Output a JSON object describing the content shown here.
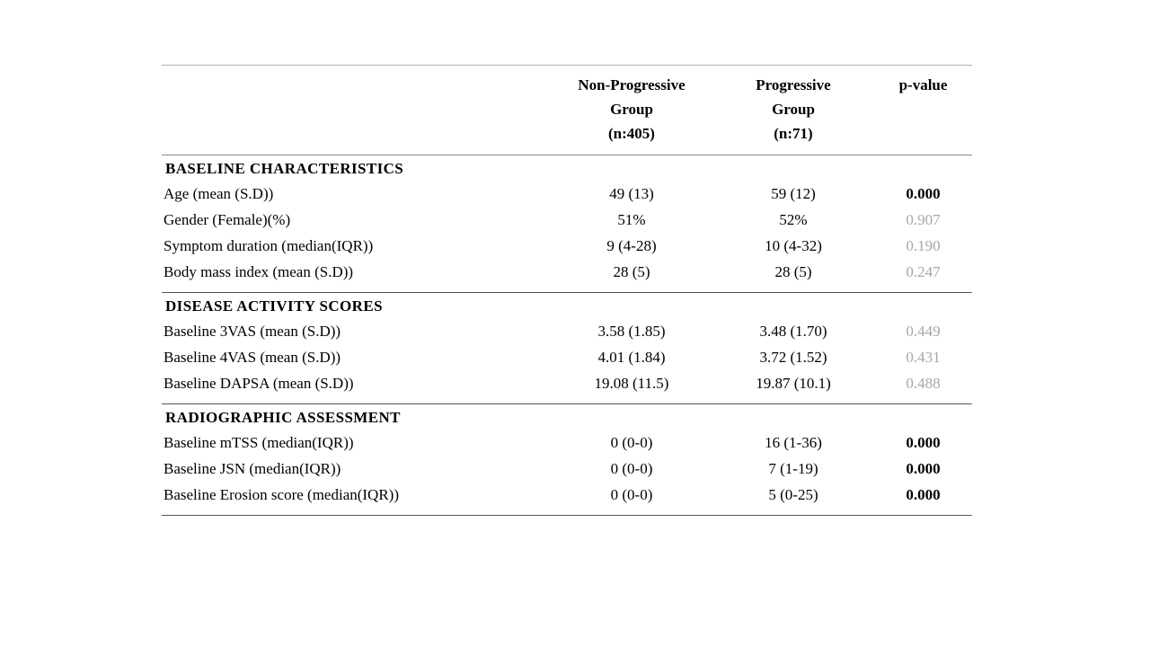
{
  "table": {
    "header": {
      "col_label": "",
      "col_nonprog": "Non-Progressive\nGroup\n(n:405)",
      "col_prog": "Progressive\nGroup\n(n:71)",
      "col_p": "p-value"
    },
    "p_color_significant": "#000000",
    "p_color_nonsignificant": "#a6a6a6",
    "sections": [
      {
        "title": "BASELINE CHARACTERISTICS",
        "rows": [
          {
            "label": "Age (mean (S.D))",
            "nonprog": "49 (13)",
            "prog": "59 (12)",
            "p": "0.000",
            "p_class": "pv sig"
          },
          {
            "label": "Gender (Female)(%)",
            "nonprog": "51%",
            "prog": "52%",
            "p": "0.907",
            "p_class": "pv ns"
          },
          {
            "label": "Symptom duration (median(IQR))",
            "nonprog": "9 (4-28)",
            "prog": "10 (4-32)",
            "p": "0.190",
            "p_class": "pv ns"
          },
          {
            "label": "Body mass index (mean (S.D))",
            "nonprog": "28 (5)",
            "prog": "28 (5)",
            "p": "0.247",
            "p_class": "pv ns"
          }
        ]
      },
      {
        "title": "DISEASE ACTIVITY SCORES",
        "rows": [
          {
            "label": "Baseline 3VAS (mean (S.D))",
            "nonprog": "3.58 (1.85)",
            "prog": "3.48 (1.70)",
            "p": "0.449",
            "p_class": "pv ns"
          },
          {
            "label": "Baseline 4VAS (mean (S.D))",
            "nonprog": "4.01 (1.84)",
            "prog": "3.72 (1.52)",
            "p": "0.431",
            "p_class": "pv ns"
          },
          {
            "label": "Baseline DAPSA (mean (S.D))",
            "nonprog": "19.08 (11.5)",
            "prog": "19.87 (10.1)",
            "p": "0.488",
            "p_class": "pv ns"
          }
        ]
      },
      {
        "title": "RADIOGRAPHIC ASSESSMENT",
        "rows": [
          {
            "label": "Baseline mTSS (median(IQR))",
            "nonprog": "0 (0-0)",
            "prog": "16 (1-36)",
            "p": "0.000",
            "p_class": "pv sig"
          },
          {
            "label": "Baseline JSN (median(IQR))",
            "nonprog": "0 (0-0)",
            "prog": "7 (1-19)",
            "p": "0.000",
            "p_class": "pv sig"
          },
          {
            "label": "Baseline Erosion score (median(IQR))",
            "nonprog": "0 (0-0)",
            "prog": "5 (0-25)",
            "p": "0.000",
            "p_class": "pv sig"
          }
        ]
      }
    ]
  }
}
